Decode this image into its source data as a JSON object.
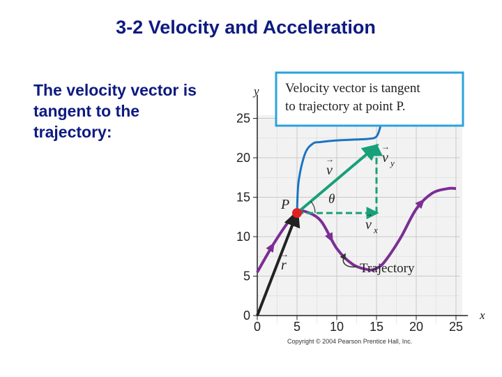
{
  "slide": {
    "title": "3-2 Velocity and Acceleration",
    "body_text": "The velocity vector is tangent to the trajectory:"
  },
  "figure": {
    "callout_lines": [
      "Velocity vector is tangent",
      "to trajectory at point P."
    ],
    "point_label": "P",
    "angle_label": "θ",
    "vector_labels": {
      "v": "v",
      "vy": "v",
      "vy_sub": "y",
      "vx": "v",
      "vx_sub": "x",
      "r": "r"
    },
    "trajectory_label": "Trajectory",
    "copyright": "Copyright © 2004 Pearson Prentice Hall, Inc.",
    "colors": {
      "trajectory": "#7b2e94",
      "blue_curve": "#1a74c2",
      "velocity": "#17a07a",
      "point": "#e02020",
      "callout_border": "#2aa3dc",
      "position_vector": "#222222",
      "title_text": "#0d1a80"
    }
  },
  "chart_data": {
    "type": "line",
    "x_axis": {
      "label": "x",
      "ticks": [
        0,
        5,
        10,
        15,
        20,
        25
      ],
      "range": [
        0,
        25
      ]
    },
    "y_axis": {
      "label": "y",
      "ticks": [
        0,
        5,
        10,
        15,
        20,
        25
      ],
      "range": [
        0,
        25
      ]
    },
    "grid": true,
    "point_P": {
      "x": 5,
      "y": 13
    },
    "series": [
      {
        "x": [
          0,
          2,
          4,
          5,
          6,
          8,
          10,
          12,
          14,
          15,
          16,
          18,
          20,
          22,
          24,
          25
        ],
        "y": [
          5.5,
          9,
          12,
          13,
          13.2,
          12,
          8.5,
          6.5,
          5.8,
          6,
          6.8,
          9.8,
          13.5,
          15.5,
          16.1,
          16.1
        ]
      },
      {
        "x": [
          5,
          5.2,
          6,
          7,
          8,
          10,
          12,
          14,
          15,
          15.5,
          16
        ],
        "y": [
          13,
          17,
          20.5,
          21.8,
          22,
          22.2,
          22.3,
          22.4,
          22.7,
          24,
          26
        ]
      },
      {
        "x": [
          5,
          15
        ],
        "y": [
          13,
          21.5
        ]
      },
      {
        "x": [
          5,
          15
        ],
        "y": [
          13,
          13
        ]
      },
      {
        "x": [
          15,
          15
        ],
        "y": [
          13,
          21.5
        ]
      },
      {
        "x": [
          0,
          5
        ],
        "y": [
          0,
          13
        ]
      }
    ]
  }
}
